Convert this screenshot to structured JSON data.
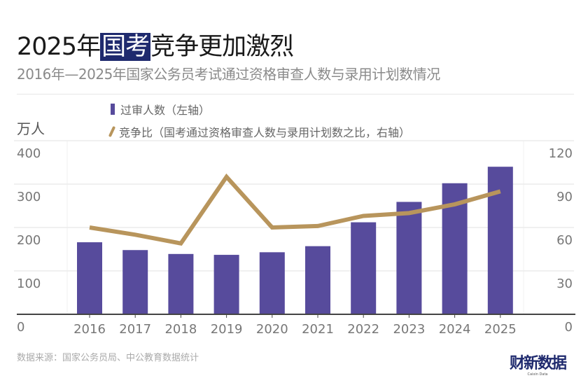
{
  "title": {
    "pre": "2025年",
    "highlight": "国考",
    "post": "竞争更加激烈"
  },
  "subtitle": "2016年—2025年国家公务员考试通过资格审查人数与录用计划数情况",
  "unit_label": "万人",
  "source": "数据来源：国家公务员局、中公教育数据统计",
  "logo": {
    "cn": "财新数据",
    "en": "Caixin Data"
  },
  "colors": {
    "bar": "#574b9c",
    "line": "#b8955c",
    "title_highlight": "#1f2a6e"
  },
  "chart_data": {
    "type": "bar+line",
    "categories": [
      "2016",
      "2017",
      "2018",
      "2019",
      "2020",
      "2021",
      "2022",
      "2023",
      "2024",
      "2025"
    ],
    "series": [
      {
        "name": "过审人数（左轴）",
        "type": "bar",
        "axis": "left",
        "values": [
          166,
          148,
          139,
          137,
          143,
          157,
          212,
          259,
          302,
          340
        ]
      },
      {
        "name": "竞争比（国考通过资格审查人数与录用计划数之比，右轴）",
        "type": "line",
        "axis": "right",
        "values": [
          60,
          55,
          49,
          95,
          60,
          61,
          68,
          70,
          76,
          85
        ]
      }
    ],
    "left_axis": {
      "ylim": [
        0,
        400
      ],
      "ticks": [
        "0",
        "100",
        "200",
        "300",
        "400"
      ]
    },
    "right_axis": {
      "ylim": [
        0,
        120
      ],
      "ticks": [
        "0",
        "30",
        "60",
        "90",
        "120"
      ]
    },
    "grid": true,
    "legend_placement": "top-left"
  }
}
